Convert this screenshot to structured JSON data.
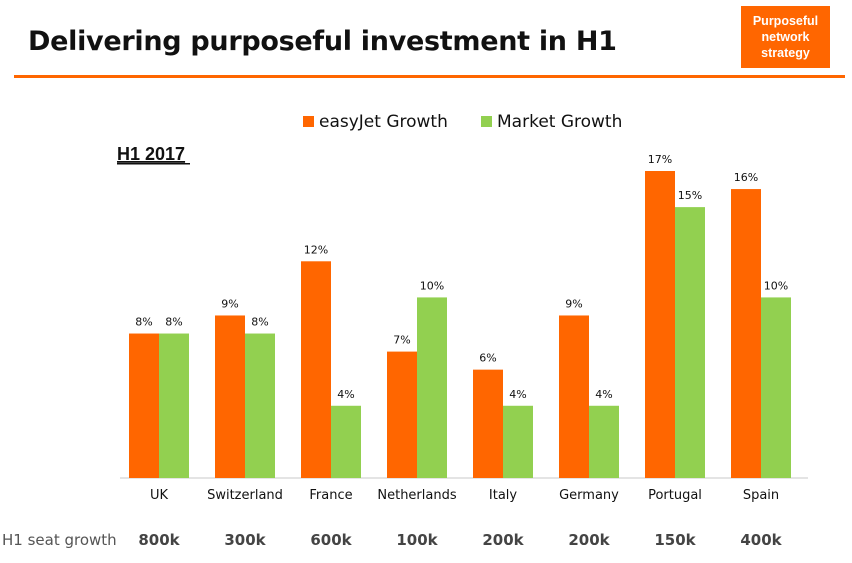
{
  "header": {
    "title": "Delivering purposeful investment in H1",
    "badge_lines": [
      "Purposeful",
      "network",
      "strategy"
    ]
  },
  "colors": {
    "easyjet": "#ff6600",
    "market": "#92d050",
    "accent": "#ff6600"
  },
  "chart_data": {
    "type": "bar",
    "title": "H1 2017",
    "categories": [
      "UK",
      "Switzerland",
      "France",
      "Netherlands",
      "Italy",
      "Germany",
      "Portugal",
      "Spain"
    ],
    "series": [
      {
        "name": "easyJet Growth",
        "values": [
          8,
          9,
          12,
          7,
          6,
          9,
          17,
          16
        ],
        "labels": [
          "8%",
          "9%",
          "12%",
          "7%",
          "6%",
          "9%",
          "17%",
          "16%"
        ]
      },
      {
        "name": "Market Growth",
        "values": [
          8,
          8,
          4,
          10,
          4,
          4,
          15,
          10
        ],
        "labels": [
          "8%",
          "8%",
          "4%",
          "10%",
          "4%",
          "4%",
          "15%",
          "10%"
        ]
      }
    ],
    "ylim": [
      0,
      17
    ],
    "legend_position": "top",
    "grid": false,
    "row_label": "H1 seat growth",
    "seat_growth": [
      "800k",
      "300k",
      "600k",
      "100k",
      "200k",
      "200k",
      "150k",
      "400k"
    ]
  }
}
